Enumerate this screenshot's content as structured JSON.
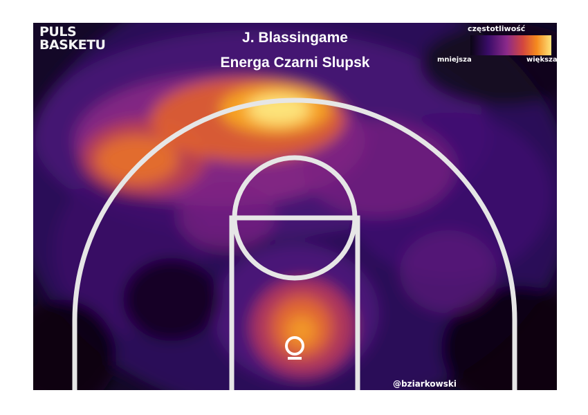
{
  "branding": {
    "logo_line1": "PULS",
    "logo_line2": "BASKETU",
    "credit": "@bziarkowski"
  },
  "chart_data": {
    "type": "heatmap",
    "title": "J. Blassingame",
    "subtitle": "Energa Czarni Slupsk",
    "legend": {
      "title": "częstotliwość",
      "low_label": "mniejsza",
      "high_label": "większa",
      "placement": "top-right"
    },
    "colors": [
      "#0a0514",
      "#3a0c68",
      "#8b2a8a",
      "#d4473e",
      "#f58a1e",
      "#fde37a"
    ],
    "hotspots": [
      {
        "zone": "top of key / left wing beyond arc",
        "intensity": 1.0
      },
      {
        "zone": "left wing three",
        "intensity": 0.75
      },
      {
        "zone": "paint near basket",
        "intensity": 0.7
      },
      {
        "zone": "right of top of key",
        "intensity": 0.45
      },
      {
        "zone": "left elbow",
        "intensity": 0.35
      },
      {
        "zone": "right short corner",
        "intensity": 0.3
      }
    ]
  }
}
